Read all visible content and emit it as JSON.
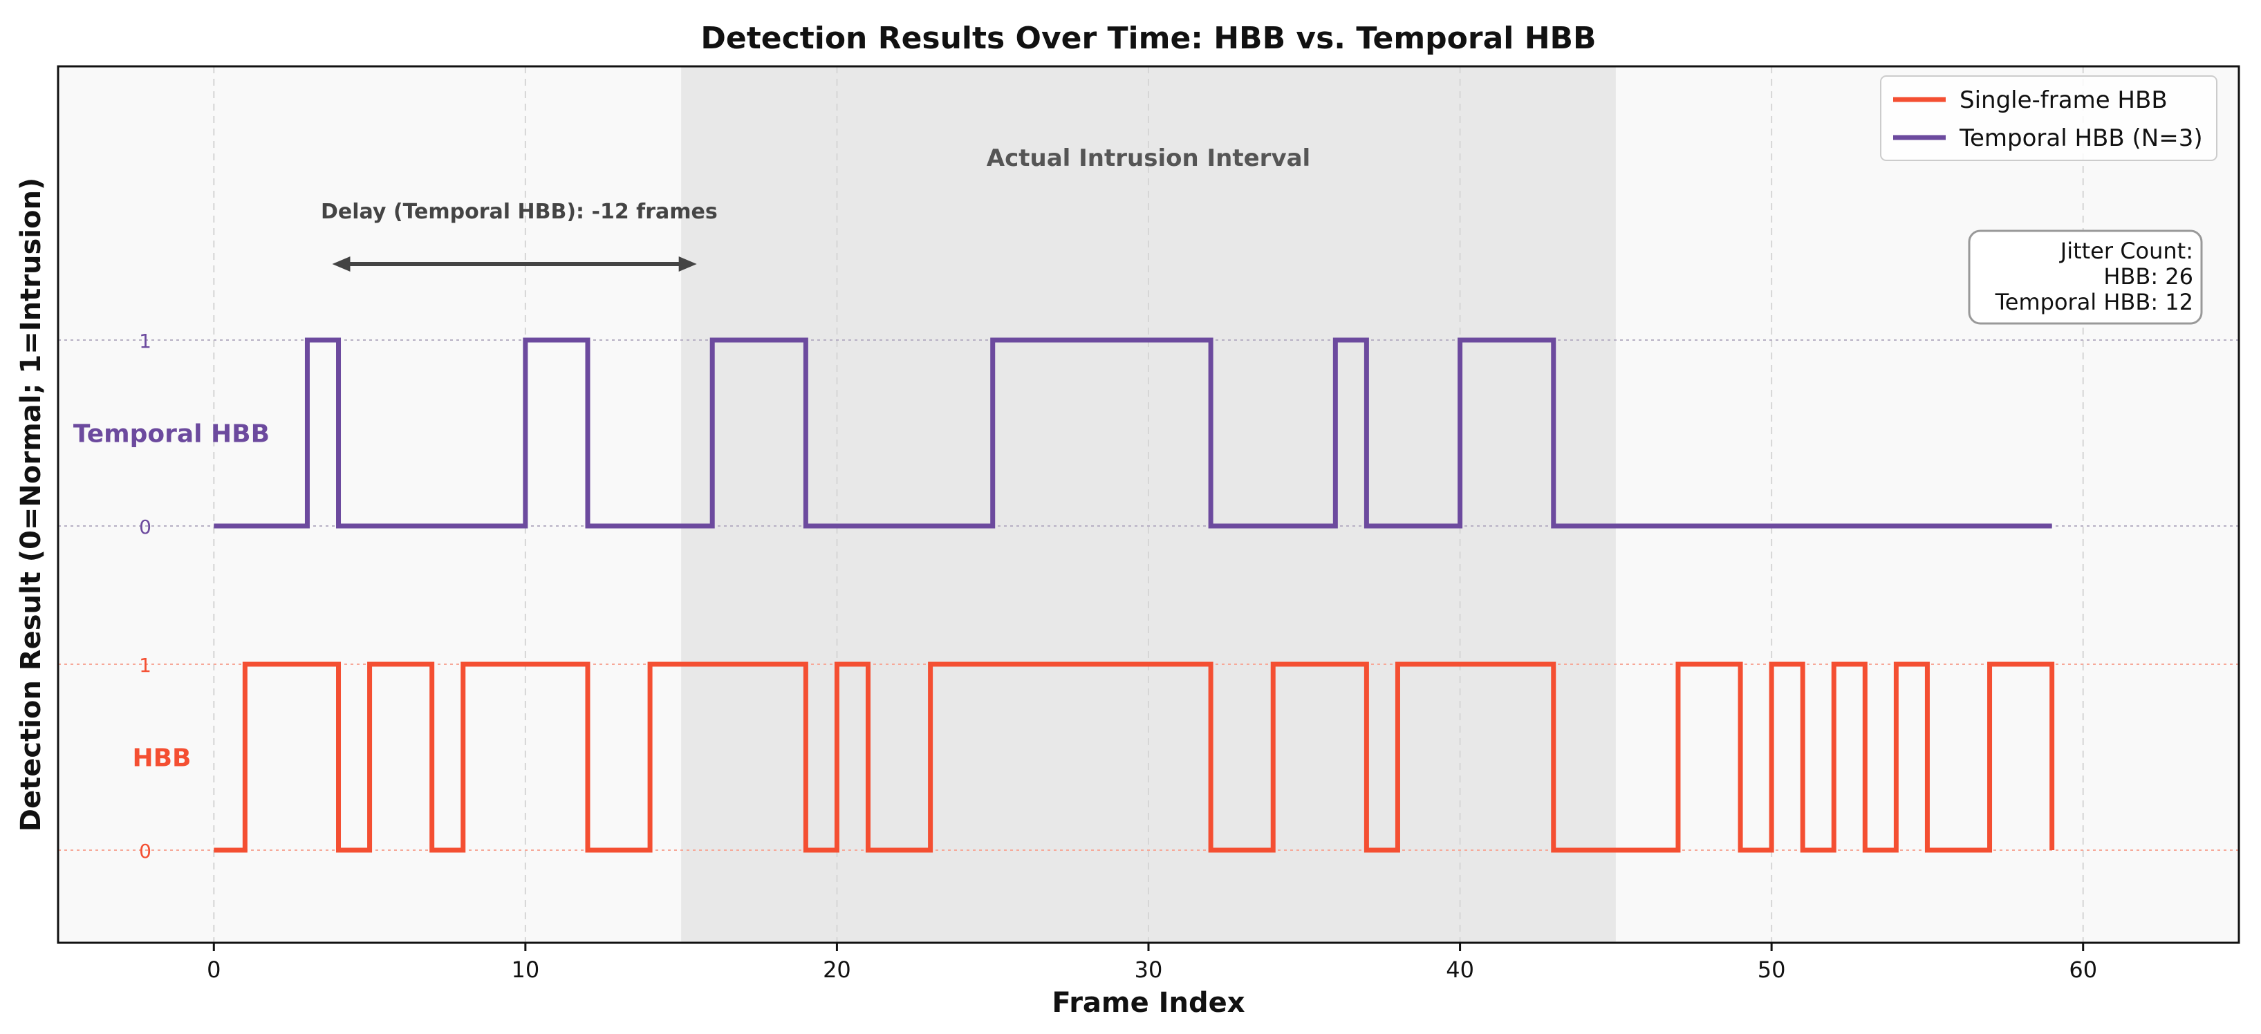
{
  "chart_data": {
    "type": "line",
    "step": "post",
    "title": "Detection Results Over Time: HBB vs. Temporal HBB",
    "xlabel": "Frame Index",
    "ylabel": "Detection Result (0=Normal; 1=Intrusion)",
    "xlim": [
      -5,
      65
    ],
    "xticks": [
      0,
      10,
      20,
      30,
      40,
      50,
      60
    ],
    "grid": true,
    "legend_position": "upper right",
    "x": [
      0,
      1,
      2,
      3,
      4,
      5,
      6,
      7,
      8,
      9,
      10,
      11,
      12,
      13,
      14,
      15,
      16,
      17,
      18,
      19,
      20,
      21,
      22,
      23,
      24,
      25,
      26,
      27,
      28,
      29,
      30,
      31,
      32,
      33,
      34,
      35,
      36,
      37,
      38,
      39,
      40,
      41,
      42,
      43,
      44,
      45,
      46,
      47,
      48,
      49,
      50,
      51,
      52,
      53,
      54,
      55,
      56,
      57,
      58,
      59
    ],
    "series": [
      {
        "name": "Single-frame HBB",
        "color": "#f44f32",
        "values": [
          0,
          1,
          1,
          1,
          0,
          1,
          1,
          0,
          1,
          1,
          1,
          1,
          0,
          0,
          1,
          1,
          1,
          1,
          1,
          0,
          1,
          0,
          0,
          1,
          1,
          1,
          1,
          1,
          1,
          1,
          1,
          1,
          0,
          0,
          1,
          1,
          1,
          0,
          1,
          1,
          1,
          1,
          1,
          0,
          0,
          0,
          0,
          1,
          1,
          0,
          1,
          0,
          1,
          0,
          1,
          0,
          0,
          1,
          1,
          0
        ],
        "row_label": "HBB",
        "level_ticks": [
          "0",
          "1"
        ]
      },
      {
        "name": "Temporal HBB (N=3)",
        "color": "#6c4a9e",
        "values": [
          0,
          0,
          0,
          1,
          0,
          0,
          0,
          0,
          0,
          0,
          1,
          1,
          0,
          0,
          0,
          0,
          1,
          1,
          1,
          0,
          0,
          0,
          0,
          0,
          0,
          1,
          1,
          1,
          1,
          1,
          1,
          1,
          0,
          0,
          0,
          0,
          1,
          0,
          0,
          0,
          1,
          1,
          1,
          0,
          0,
          0,
          0,
          0,
          0,
          0,
          0,
          0,
          0,
          0,
          0,
          0,
          0,
          0,
          0,
          0
        ],
        "row_label": "Temporal HBB",
        "level_ticks": [
          "0",
          "1"
        ]
      }
    ],
    "shaded_region": {
      "x_start": 15,
      "x_end": 45,
      "label": "Actual Intrusion Interval"
    },
    "delay_annotation": {
      "text": "Delay (Temporal HBB): -12 frames",
      "x_from": 3.8,
      "x_to": 15.5
    },
    "jitter_box": {
      "lines": [
        "Jitter Count:",
        "HBB: 26",
        "Temporal HBB: 12"
      ]
    }
  }
}
